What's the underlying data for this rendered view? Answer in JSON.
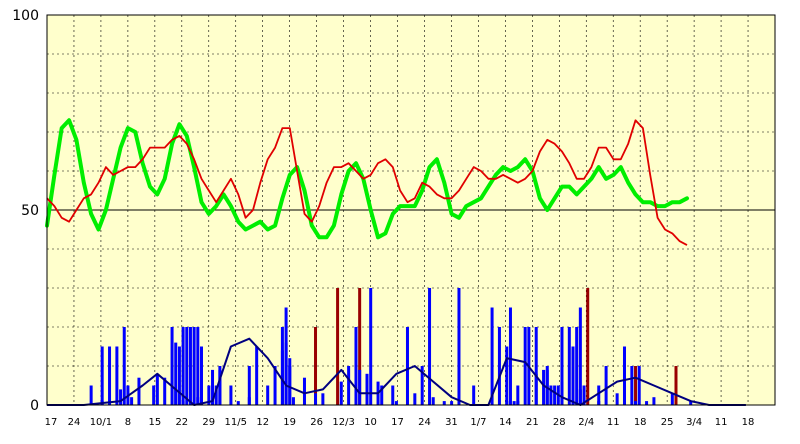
{
  "chart_data": {
    "type": "line",
    "title": "",
    "xlabel": "",
    "ylabel": "",
    "ylim": [
      0,
      100
    ],
    "y_ticks": [
      "0",
      "50",
      "100"
    ],
    "grid": true,
    "x_tick_labels": [
      "17",
      "24",
      "10/1",
      "8",
      "15",
      "22",
      "29",
      "11/5",
      "12",
      "19",
      "26",
      "12/3",
      "10",
      "17",
      "24",
      "31",
      "1/7",
      "14",
      "21",
      "28",
      "2/4",
      "11",
      "18",
      "25",
      "3/4",
      "11",
      "18"
    ],
    "plot_background": "#ffffcc",
    "colors": {
      "red_line": "#e00000",
      "green_line": "#00ee00",
      "bars": "#0000ff",
      "bars_alt": "#990000",
      "dark_line": "#000080",
      "grid": "#000000"
    },
    "series": [
      {
        "color": "red",
        "x": [
          0,
          2,
          4,
          6,
          8,
          10,
          12,
          14,
          16,
          18,
          20,
          22,
          24,
          26,
          28,
          30,
          32,
          34,
          36,
          38,
          40,
          42,
          44,
          46,
          48,
          50,
          52,
          54,
          56,
          58,
          60,
          62,
          64,
          66,
          68,
          70,
          72,
          74,
          76,
          78,
          80,
          82,
          84,
          86,
          88,
          90,
          92,
          94,
          96,
          98,
          100,
          102,
          104,
          106,
          108,
          110,
          112,
          114,
          116,
          118,
          120,
          122,
          124,
          126,
          128,
          130,
          132,
          134,
          136,
          138,
          140,
          142,
          144,
          146,
          148,
          150,
          152,
          154,
          156,
          158,
          160,
          162,
          164,
          166,
          168,
          170,
          172,
          174,
          176,
          178,
          180,
          182,
          184,
          186,
          188,
          190
        ],
        "values": [
          53,
          51,
          48,
          47,
          50,
          53,
          54,
          57,
          61,
          59,
          60,
          61,
          61,
          63,
          66,
          66,
          66,
          68,
          69,
          67,
          63,
          58,
          55,
          52,
          55,
          58,
          54,
          48,
          50,
          57,
          63,
          66,
          71,
          71,
          60,
          49,
          47,
          51,
          57,
          61,
          61,
          62,
          60,
          58,
          59,
          62,
          63,
          61,
          55,
          52,
          53,
          57,
          56,
          54,
          53,
          53,
          55,
          58,
          61,
          60,
          58,
          58,
          59,
          58,
          57,
          58,
          60,
          65,
          68,
          67,
          65,
          62,
          58,
          58,
          61,
          66,
          66,
          63,
          63,
          67,
          73,
          71,
          59,
          48,
          45,
          44,
          42,
          41,
          null,
          null,
          null,
          null,
          null,
          null,
          null,
          null
        ]
      },
      {
        "color": "green",
        "x": [
          0,
          2,
          4,
          6,
          8,
          10,
          12,
          14,
          16,
          18,
          20,
          22,
          24,
          26,
          28,
          30,
          32,
          34,
          36,
          38,
          40,
          42,
          44,
          46,
          48,
          50,
          52,
          54,
          56,
          58,
          60,
          62,
          64,
          66,
          68,
          70,
          72,
          74,
          76,
          78,
          80,
          82,
          84,
          86,
          88,
          90,
          92,
          94,
          96,
          98,
          100,
          102,
          104,
          106,
          108,
          110,
          112,
          114,
          116,
          118,
          120,
          122,
          124,
          126,
          128,
          130,
          132,
          134,
          136,
          138,
          140,
          142,
          144,
          146,
          148,
          150,
          152,
          154,
          156,
          158,
          160,
          162,
          164,
          166,
          168,
          170,
          172,
          174,
          176,
          178,
          180,
          182,
          184,
          186,
          188,
          190
        ],
        "values": [
          46,
          59,
          71,
          73,
          68,
          57,
          49,
          45,
          50,
          58,
          66,
          71,
          70,
          62,
          56,
          54,
          58,
          67,
          72,
          69,
          61,
          52,
          49,
          51,
          54,
          51,
          47,
          45,
          46,
          47,
          45,
          46,
          53,
          59,
          61,
          55,
          46,
          43,
          43,
          46,
          54,
          60,
          62,
          58,
          50,
          43,
          44,
          49,
          51,
          51,
          51,
          55,
          61,
          63,
          57,
          49,
          48,
          51,
          52,
          53,
          56,
          59,
          61,
          60,
          61,
          63,
          60,
          53,
          50,
          53,
          56,
          56,
          54,
          56,
          58,
          61,
          58,
          59,
          61,
          57,
          54,
          52,
          52,
          51,
          51,
          52,
          52,
          53,
          null,
          null,
          null,
          null,
          null,
          null,
          null,
          null
        ]
      }
    ],
    "bars_primary": {
      "color": "blue",
      "x": [
        12,
        15,
        17,
        19,
        21,
        23,
        29,
        34,
        35,
        36,
        37,
        38,
        39,
        40,
        41,
        42,
        44,
        46,
        47,
        55,
        57,
        64,
        65,
        66,
        67,
        82,
        84,
        88,
        94,
        98,
        102,
        104,
        108,
        112,
        116,
        121,
        123,
        125,
        126,
        127,
        128,
        130,
        131,
        133,
        136,
        137,
        138,
        139,
        140,
        142,
        143,
        144,
        145,
        150,
        152,
        157,
        159,
        161
      ],
      "values": [
        5,
        15,
        15,
        15,
        20,
        2,
        5,
        20,
        16,
        15,
        20,
        20,
        20,
        20,
        20,
        15,
        5,
        5,
        10,
        10,
        15,
        20,
        25,
        10,
        2,
        10,
        20,
        30,
        5,
        20,
        10,
        30,
        1,
        30,
        5,
        25,
        20,
        15,
        25,
        1,
        1,
        20,
        20,
        20,
        10,
        5,
        5,
        5,
        20,
        20,
        15,
        20,
        25,
        1,
        10,
        15,
        10,
        10
      ]
    },
    "bars_secondary": {
      "color": "dark red",
      "x": [
        73,
        79,
        85,
        147,
        160,
        171
      ],
      "values": [
        20,
        30,
        30,
        30,
        10,
        10
      ]
    },
    "bars_overlay": {
      "color": "navy",
      "x": [
        0,
        5,
        10,
        15,
        20,
        22,
        25,
        30,
        32,
        35,
        37,
        38,
        40,
        41,
        42,
        45,
        47,
        50,
        52,
        55,
        60,
        62,
        64,
        65,
        66,
        70,
        73,
        75,
        80,
        85,
        87,
        90,
        91,
        95,
        98,
        100,
        105,
        110,
        114,
        118,
        121,
        125,
        128,
        133,
        135,
        136,
        140,
        145,
        146,
        150,
        155,
        160,
        163,
        165,
        170,
        175,
        178,
        180
      ],
      "values": [
        0,
        0,
        0,
        1,
        4,
        5,
        7,
        8,
        7,
        4,
        1,
        0,
        0,
        2,
        5,
        9,
        9,
        5,
        1,
        2,
        5,
        10,
        14,
        16,
        12,
        7,
        3,
        3,
        6,
        9,
        8,
        6,
        5,
        1,
        0,
        3,
        2,
        1,
        0,
        0,
        0,
        1,
        5,
        8,
        9,
        9,
        6,
        4,
        5,
        5,
        3,
        1,
        1,
        2,
        3,
        1,
        0,
        0
      ]
    },
    "line_low": {
      "color": "navy",
      "x": [
        0,
        10,
        20,
        26,
        30,
        35,
        40,
        45,
        50,
        55,
        60,
        65,
        70,
        75,
        80,
        85,
        90,
        95,
        100,
        105,
        110,
        115,
        120,
        125,
        130,
        135,
        140,
        145,
        150,
        155,
        160,
        165,
        170,
        175,
        180,
        185,
        190
      ],
      "values": [
        0,
        0,
        1,
        5,
        8,
        4,
        0,
        1,
        15,
        17,
        12,
        5,
        3,
        4,
        9,
        3,
        3,
        8,
        10,
        6,
        2,
        0,
        0,
        12,
        11,
        5,
        2,
        0,
        3,
        6,
        7,
        5,
        3,
        1,
        0,
        0,
        0
      ]
    }
  }
}
